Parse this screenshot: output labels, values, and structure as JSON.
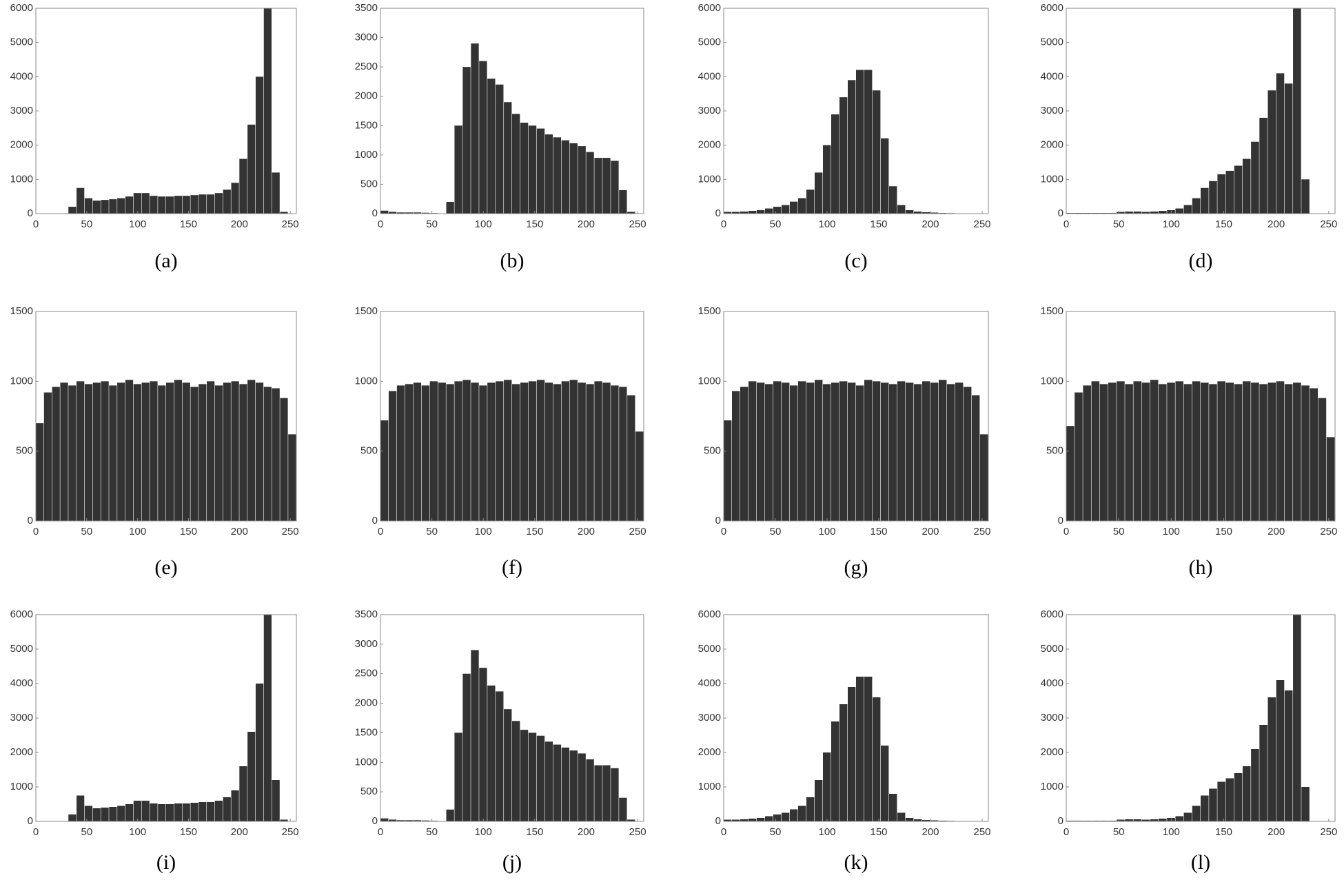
{
  "chart_data": [
    {
      "type": "histogram",
      "caption": "(a)",
      "color": "#333333",
      "xlim": [
        0,
        256
      ],
      "ylim": [
        0,
        6000
      ],
      "xticks": [
        0,
        50,
        100,
        150,
        200,
        250
      ],
      "yticks": [
        0,
        1000,
        2000,
        3000,
        4000,
        5000,
        6000
      ],
      "bins": [
        0,
        8,
        16,
        24,
        32,
        40,
        48,
        56,
        64,
        72,
        80,
        88,
        96,
        104,
        112,
        120,
        128,
        136,
        144,
        152,
        160,
        168,
        176,
        184,
        192,
        200,
        208,
        216,
        224,
        232,
        240,
        248,
        256
      ],
      "values": [
        0,
        0,
        0,
        0,
        200,
        750,
        450,
        380,
        400,
        420,
        450,
        500,
        600,
        600,
        520,
        500,
        500,
        520,
        520,
        540,
        560,
        560,
        600,
        700,
        900,
        1600,
        2600,
        4000,
        6000,
        1200,
        50,
        0
      ]
    },
    {
      "type": "histogram",
      "caption": "(b)",
      "color": "#333333",
      "xlim": [
        0,
        256
      ],
      "ylim": [
        0,
        3500
      ],
      "xticks": [
        0,
        50,
        100,
        150,
        200,
        250
      ],
      "yticks": [
        0,
        500,
        1000,
        1500,
        2000,
        2500,
        3000,
        3500
      ],
      "bins": [
        0,
        8,
        16,
        24,
        32,
        40,
        48,
        56,
        64,
        72,
        80,
        88,
        96,
        104,
        112,
        120,
        128,
        136,
        144,
        152,
        160,
        168,
        176,
        184,
        192,
        200,
        208,
        216,
        224,
        232,
        240,
        248,
        256
      ],
      "values": [
        50,
        30,
        20,
        20,
        20,
        15,
        10,
        5,
        200,
        1500,
        2500,
        2900,
        2600,
        2300,
        2200,
        1900,
        1700,
        1550,
        1500,
        1450,
        1350,
        1300,
        1250,
        1200,
        1150,
        1050,
        950,
        950,
        900,
        400,
        30,
        0
      ]
    },
    {
      "type": "histogram",
      "caption": "(c)",
      "color": "#333333",
      "xlim": [
        0,
        256
      ],
      "ylim": [
        0,
        6000
      ],
      "xticks": [
        0,
        50,
        100,
        150,
        200,
        250
      ],
      "yticks": [
        0,
        1000,
        2000,
        3000,
        4000,
        5000,
        6000
      ],
      "bins": [
        0,
        8,
        16,
        24,
        32,
        40,
        48,
        56,
        64,
        72,
        80,
        88,
        96,
        104,
        112,
        120,
        128,
        136,
        144,
        152,
        160,
        168,
        176,
        184,
        192,
        200,
        208,
        216,
        224,
        232,
        240,
        248,
        256
      ],
      "values": [
        50,
        50,
        60,
        80,
        100,
        150,
        200,
        250,
        350,
        450,
        700,
        1200,
        2000,
        2900,
        3400,
        3900,
        4200,
        4200,
        3600,
        2200,
        800,
        250,
        100,
        60,
        40,
        30,
        20,
        15,
        10,
        10,
        5,
        5
      ]
    },
    {
      "type": "histogram",
      "caption": "(d)",
      "color": "#333333",
      "xlim": [
        0,
        256
      ],
      "ylim": [
        0,
        6000
      ],
      "xticks": [
        0,
        50,
        100,
        150,
        200,
        250
      ],
      "yticks": [
        0,
        1000,
        2000,
        3000,
        4000,
        5000,
        6000
      ],
      "bins": [
        0,
        8,
        16,
        24,
        32,
        40,
        48,
        56,
        64,
        72,
        80,
        88,
        96,
        104,
        112,
        120,
        128,
        136,
        144,
        152,
        160,
        168,
        176,
        184,
        192,
        200,
        208,
        216,
        224,
        232,
        240,
        248,
        256
      ],
      "values": [
        20,
        20,
        20,
        20,
        20,
        20,
        50,
        60,
        60,
        50,
        60,
        80,
        100,
        150,
        250,
        450,
        750,
        950,
        1150,
        1250,
        1400,
        1600,
        2100,
        2800,
        3600,
        4100,
        3800,
        6000,
        1000,
        0,
        0,
        0
      ]
    },
    {
      "type": "histogram",
      "caption": "(e)",
      "color": "#333333",
      "xlim": [
        0,
        256
      ],
      "ylim": [
        0,
        1500
      ],
      "xticks": [
        0,
        50,
        100,
        150,
        200,
        250
      ],
      "yticks": [
        0,
        500,
        1000,
        1500
      ],
      "bins": [
        0,
        8,
        16,
        24,
        32,
        40,
        48,
        56,
        64,
        72,
        80,
        88,
        96,
        104,
        112,
        120,
        128,
        136,
        144,
        152,
        160,
        168,
        176,
        184,
        192,
        200,
        208,
        216,
        224,
        232,
        240,
        248,
        256
      ],
      "values": [
        700,
        920,
        960,
        990,
        970,
        1000,
        980,
        990,
        1000,
        970,
        990,
        1010,
        980,
        990,
        1000,
        970,
        990,
        1010,
        990,
        960,
        980,
        1000,
        970,
        990,
        1000,
        980,
        1010,
        990,
        960,
        950,
        880,
        620
      ]
    },
    {
      "type": "histogram",
      "caption": "(f)",
      "color": "#333333",
      "xlim": [
        0,
        256
      ],
      "ylim": [
        0,
        1500
      ],
      "xticks": [
        0,
        50,
        100,
        150,
        200,
        250
      ],
      "yticks": [
        0,
        500,
        1000,
        1500
      ],
      "bins": [
        0,
        8,
        16,
        24,
        32,
        40,
        48,
        56,
        64,
        72,
        80,
        88,
        96,
        104,
        112,
        120,
        128,
        136,
        144,
        152,
        160,
        168,
        176,
        184,
        192,
        200,
        208,
        216,
        224,
        232,
        240,
        248,
        256
      ],
      "values": [
        720,
        930,
        970,
        980,
        990,
        970,
        1000,
        990,
        980,
        1000,
        1010,
        990,
        970,
        990,
        1000,
        1010,
        980,
        990,
        1000,
        1010,
        990,
        980,
        1000,
        1010,
        990,
        980,
        1000,
        990,
        970,
        960,
        900,
        640
      ]
    },
    {
      "type": "histogram",
      "caption": "(g)",
      "color": "#333333",
      "xlim": [
        0,
        256
      ],
      "ylim": [
        0,
        1500
      ],
      "xticks": [
        0,
        50,
        100,
        150,
        200,
        250
      ],
      "yticks": [
        0,
        500,
        1000,
        1500
      ],
      "bins": [
        0,
        8,
        16,
        24,
        32,
        40,
        48,
        56,
        64,
        72,
        80,
        88,
        96,
        104,
        112,
        120,
        128,
        136,
        144,
        152,
        160,
        168,
        176,
        184,
        192,
        200,
        208,
        216,
        224,
        232,
        240,
        248,
        256
      ],
      "values": [
        720,
        930,
        960,
        1000,
        990,
        980,
        1000,
        990,
        970,
        1000,
        990,
        1010,
        980,
        990,
        1000,
        990,
        970,
        1010,
        1000,
        990,
        980,
        1000,
        990,
        980,
        1000,
        990,
        1010,
        980,
        990,
        960,
        900,
        620
      ]
    },
    {
      "type": "histogram",
      "caption": "(h)",
      "color": "#333333",
      "xlim": [
        0,
        256
      ],
      "ylim": [
        0,
        1500
      ],
      "xticks": [
        0,
        50,
        100,
        150,
        200,
        250
      ],
      "yticks": [
        0,
        500,
        1000,
        1500
      ],
      "bins": [
        0,
        8,
        16,
        24,
        32,
        40,
        48,
        56,
        64,
        72,
        80,
        88,
        96,
        104,
        112,
        120,
        128,
        136,
        144,
        152,
        160,
        168,
        176,
        184,
        192,
        200,
        208,
        216,
        224,
        232,
        240,
        248,
        256
      ],
      "values": [
        680,
        920,
        970,
        1000,
        980,
        990,
        1000,
        980,
        1000,
        990,
        1010,
        980,
        990,
        1000,
        980,
        1000,
        990,
        980,
        1000,
        990,
        980,
        1000,
        990,
        980,
        990,
        1000,
        980,
        990,
        970,
        950,
        880,
        600
      ]
    },
    {
      "type": "histogram",
      "caption": "(i)",
      "color": "#333333",
      "xlim": [
        0,
        256
      ],
      "ylim": [
        0,
        6000
      ],
      "xticks": [
        0,
        50,
        100,
        150,
        200,
        250
      ],
      "yticks": [
        0,
        1000,
        2000,
        3000,
        4000,
        5000,
        6000
      ],
      "bins": [
        0,
        8,
        16,
        24,
        32,
        40,
        48,
        56,
        64,
        72,
        80,
        88,
        96,
        104,
        112,
        120,
        128,
        136,
        144,
        152,
        160,
        168,
        176,
        184,
        192,
        200,
        208,
        216,
        224,
        232,
        240,
        248,
        256
      ],
      "values": [
        0,
        0,
        0,
        0,
        200,
        750,
        450,
        380,
        400,
        420,
        450,
        500,
        600,
        600,
        520,
        500,
        500,
        520,
        520,
        540,
        560,
        560,
        600,
        700,
        900,
        1600,
        2600,
        4000,
        6000,
        1200,
        50,
        0
      ]
    },
    {
      "type": "histogram",
      "caption": "(j)",
      "color": "#333333",
      "xlim": [
        0,
        256
      ],
      "ylim": [
        0,
        3500
      ],
      "xticks": [
        0,
        50,
        100,
        150,
        200,
        250
      ],
      "yticks": [
        0,
        500,
        1000,
        1500,
        2000,
        2500,
        3000,
        3500
      ],
      "bins": [
        0,
        8,
        16,
        24,
        32,
        40,
        48,
        56,
        64,
        72,
        80,
        88,
        96,
        104,
        112,
        120,
        128,
        136,
        144,
        152,
        160,
        168,
        176,
        184,
        192,
        200,
        208,
        216,
        224,
        232,
        240,
        248,
        256
      ],
      "values": [
        50,
        30,
        20,
        20,
        20,
        15,
        10,
        5,
        200,
        1500,
        2500,
        2900,
        2600,
        2300,
        2200,
        1900,
        1700,
        1550,
        1500,
        1450,
        1350,
        1300,
        1250,
        1200,
        1150,
        1050,
        950,
        950,
        900,
        400,
        30,
        0
      ]
    },
    {
      "type": "histogram",
      "caption": "(k)",
      "color": "#333333",
      "xlim": [
        0,
        256
      ],
      "ylim": [
        0,
        6000
      ],
      "xticks": [
        0,
        50,
        100,
        150,
        200,
        250
      ],
      "yticks": [
        0,
        1000,
        2000,
        3000,
        4000,
        5000,
        6000
      ],
      "bins": [
        0,
        8,
        16,
        24,
        32,
        40,
        48,
        56,
        64,
        72,
        80,
        88,
        96,
        104,
        112,
        120,
        128,
        136,
        144,
        152,
        160,
        168,
        176,
        184,
        192,
        200,
        208,
        216,
        224,
        232,
        240,
        248,
        256
      ],
      "values": [
        50,
        50,
        60,
        80,
        100,
        150,
        200,
        250,
        350,
        450,
        700,
        1200,
        2000,
        2900,
        3400,
        3900,
        4200,
        4200,
        3600,
        2200,
        800,
        250,
        100,
        60,
        40,
        30,
        20,
        15,
        10,
        10,
        5,
        5
      ]
    },
    {
      "type": "histogram",
      "caption": "(l)",
      "color": "#333333",
      "xlim": [
        0,
        256
      ],
      "ylim": [
        0,
        6000
      ],
      "xticks": [
        0,
        50,
        100,
        150,
        200,
        250
      ],
      "yticks": [
        0,
        1000,
        2000,
        3000,
        4000,
        5000,
        6000
      ],
      "bins": [
        0,
        8,
        16,
        24,
        32,
        40,
        48,
        56,
        64,
        72,
        80,
        88,
        96,
        104,
        112,
        120,
        128,
        136,
        144,
        152,
        160,
        168,
        176,
        184,
        192,
        200,
        208,
        216,
        224,
        232,
        240,
        248,
        256
      ],
      "values": [
        20,
        20,
        20,
        20,
        20,
        20,
        50,
        60,
        60,
        50,
        60,
        80,
        100,
        150,
        250,
        450,
        750,
        950,
        1150,
        1250,
        1400,
        1600,
        2100,
        2800,
        3600,
        4100,
        3800,
        6000,
        1000,
        0,
        0,
        0
      ]
    }
  ]
}
